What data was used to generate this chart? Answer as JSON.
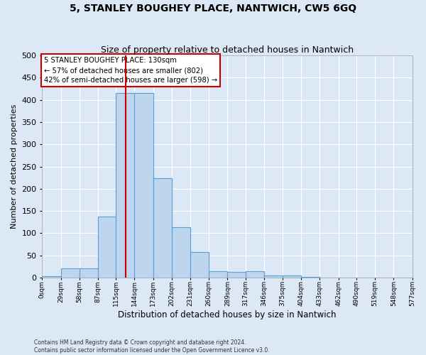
{
  "title": "5, STANLEY BOUGHEY PLACE, NANTWICH, CW5 6GQ",
  "subtitle": "Size of property relative to detached houses in Nantwich",
  "xlabel": "Distribution of detached houses by size in Nantwich",
  "ylabel": "Number of detached properties",
  "bin_edges": [
    0,
    29,
    58,
    87,
    115,
    144,
    173,
    202,
    231,
    260,
    289,
    317,
    346,
    375,
    404,
    433,
    462,
    490,
    519,
    548,
    577
  ],
  "bar_heights": [
    3,
    21,
    21,
    137,
    415,
    415,
    223,
    113,
    57,
    14,
    13,
    14,
    5,
    5,
    1,
    0,
    0,
    0,
    0,
    0
  ],
  "tick_labels": [
    "0sqm",
    "29sqm",
    "58sqm",
    "87sqm",
    "115sqm",
    "144sqm",
    "173sqm",
    "202sqm",
    "231sqm",
    "260sqm",
    "289sqm",
    "317sqm",
    "346sqm",
    "375sqm",
    "404sqm",
    "433sqm",
    "462sqm",
    "490sqm",
    "519sqm",
    "548sqm",
    "577sqm"
  ],
  "property_size": 130,
  "bar_color": "#bdd5ee",
  "bar_edge_color": "#5a9fd4",
  "vline_color": "#cc0000",
  "annotation_box_color": "#cc0000",
  "annotation_text_line1": "5 STANLEY BOUGHEY PLACE: 130sqm",
  "annotation_text_line2": "← 57% of detached houses are smaller (802)",
  "annotation_text_line3": "42% of semi-detached houses are larger (598) →",
  "footer_line1": "Contains HM Land Registry data © Crown copyright and database right 2024.",
  "footer_line2": "Contains public sector information licensed under the Open Government Licence v3.0.",
  "ylim": [
    0,
    500
  ],
  "yticks": [
    0,
    50,
    100,
    150,
    200,
    250,
    300,
    350,
    400,
    450,
    500
  ],
  "background_color": "#dce8f5",
  "plot_bg_color": "#dce8f5",
  "grid_color": "#ffffff",
  "title_fontsize": 10,
  "subtitle_fontsize": 9
}
